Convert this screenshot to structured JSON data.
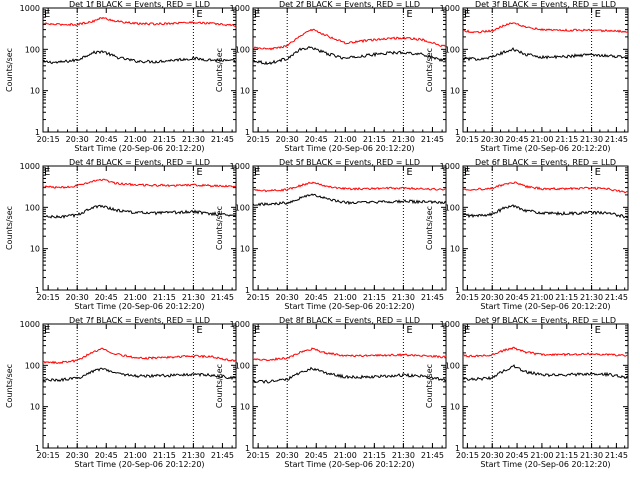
{
  "common": {
    "xlabel": "Start Time (20-Sep-06 20:12:20)",
    "ylabel": "Counts/sec",
    "xticks": [
      "20:15",
      "20:30",
      "20:45",
      "21:00",
      "21:15",
      "21:30",
      "21:45"
    ],
    "yticks": [
      "1",
      "10",
      "100",
      "1000"
    ],
    "xlim": [
      "20:12:20",
      "21:52:00"
    ],
    "ylim": [
      1,
      1000
    ],
    "yscale": "log",
    "vertical_markers": [
      "20:30",
      "21:30"
    ],
    "marker_label": "E",
    "series_colors": {
      "events": "#000000",
      "lld": "#ff0000"
    }
  },
  "chart_data": [
    {
      "type": "line",
      "title": "Det 1f BLACK = Events, RED = LLD",
      "x": [
        "20:12",
        "20:20",
        "20:30",
        "20:37",
        "20:43",
        "20:50",
        "21:00",
        "21:10",
        "21:20",
        "21:30",
        "21:40",
        "21:50"
      ],
      "series": [
        {
          "values": [
            50,
            48,
            55,
            80,
            90,
            65,
            52,
            50,
            55,
            60,
            55,
            52
          ]
        },
        {
          "values": [
            420,
            400,
            400,
            460,
            580,
            480,
            420,
            410,
            430,
            450,
            420,
            380
          ]
        }
      ]
    },
    {
      "type": "line",
      "title": "Det 2f BLACK = Events, RED = LLD",
      "x": [
        "20:12",
        "20:20",
        "20:30",
        "20:37",
        "20:43",
        "20:50",
        "21:00",
        "21:10",
        "21:20",
        "21:30",
        "21:40",
        "21:50"
      ],
      "series": [
        {
          "values": [
            55,
            45,
            60,
            100,
            110,
            80,
            60,
            70,
            80,
            85,
            75,
            55
          ]
        },
        {
          "values": [
            110,
            100,
            120,
            220,
            300,
            220,
            140,
            160,
            180,
            190,
            170,
            120
          ]
        }
      ]
    },
    {
      "type": "line",
      "title": "Det 3f BLACK = Events, RED = LLD",
      "x": [
        "20:12",
        "20:20",
        "20:30",
        "20:37",
        "20:43",
        "20:50",
        "21:00",
        "21:10",
        "21:20",
        "21:30",
        "21:40",
        "21:50"
      ],
      "series": [
        {
          "values": [
            60,
            58,
            65,
            85,
            100,
            75,
            65,
            65,
            70,
            75,
            70,
            65
          ]
        },
        {
          "values": [
            280,
            260,
            280,
            380,
            450,
            350,
            300,
            290,
            290,
            290,
            280,
            270
          ]
        }
      ]
    },
    {
      "type": "line",
      "title": "Det 4f BLACK = Events, RED = LLD",
      "x": [
        "20:12",
        "20:20",
        "20:30",
        "20:37",
        "20:43",
        "20:50",
        "21:00",
        "21:10",
        "21:20",
        "21:30",
        "21:40",
        "21:50"
      ],
      "series": [
        {
          "values": [
            60,
            58,
            65,
            95,
            110,
            85,
            75,
            72,
            75,
            78,
            70,
            65
          ]
        },
        {
          "values": [
            320,
            300,
            330,
            420,
            470,
            380,
            350,
            340,
            340,
            350,
            330,
            320
          ]
        }
      ]
    },
    {
      "type": "line",
      "title": "Det 5f BLACK = Events, RED = LLD",
      "x": [
        "20:12",
        "20:20",
        "20:30",
        "20:37",
        "20:43",
        "20:50",
        "21:00",
        "21:10",
        "21:20",
        "21:30",
        "21:40",
        "21:50"
      ],
      "series": [
        {
          "values": [
            120,
            118,
            130,
            170,
            210,
            160,
            130,
            130,
            135,
            140,
            135,
            130
          ]
        },
        {
          "values": [
            260,
            250,
            270,
            340,
            400,
            330,
            280,
            280,
            290,
            290,
            280,
            270
          ]
        }
      ]
    },
    {
      "type": "line",
      "title": "Det 6f BLACK = Events, RED = LLD",
      "x": [
        "20:12",
        "20:20",
        "20:30",
        "20:37",
        "20:43",
        "20:50",
        "21:00",
        "21:10",
        "21:20",
        "21:30",
        "21:40",
        "21:50"
      ],
      "series": [
        {
          "values": [
            65,
            62,
            68,
            95,
            110,
            85,
            72,
            70,
            72,
            75,
            72,
            60
          ]
        },
        {
          "values": [
            280,
            270,
            290,
            360,
            400,
            320,
            280,
            280,
            285,
            290,
            280,
            230
          ]
        }
      ]
    },
    {
      "type": "line",
      "title": "Det 7f BLACK = Events, RED = LLD",
      "x": [
        "20:12",
        "20:20",
        "20:30",
        "20:37",
        "20:43",
        "20:50",
        "21:00",
        "21:10",
        "21:20",
        "21:30",
        "21:40",
        "21:50"
      ],
      "series": [
        {
          "values": [
            45,
            44,
            48,
            70,
            85,
            65,
            55,
            55,
            58,
            60,
            58,
            50
          ]
        },
        {
          "values": [
            120,
            115,
            130,
            200,
            250,
            190,
            150,
            150,
            160,
            170,
            160,
            130
          ]
        }
      ]
    },
    {
      "type": "line",
      "title": "Det 8f BLACK = Events, RED = LLD",
      "x": [
        "20:12",
        "20:20",
        "20:30",
        "20:37",
        "20:43",
        "20:50",
        "21:00",
        "21:10",
        "21:20",
        "21:30",
        "21:40",
        "21:50"
      ],
      "series": [
        {
          "values": [
            42,
            40,
            45,
            68,
            85,
            65,
            52,
            52,
            55,
            58,
            55,
            45
          ]
        },
        {
          "values": [
            140,
            135,
            150,
            210,
            250,
            200,
            170,
            170,
            175,
            180,
            170,
            160
          ]
        }
      ]
    },
    {
      "type": "line",
      "title": "Det 9f BLACK = Events, RED = LLD",
      "x": [
        "20:12",
        "20:20",
        "20:30",
        "20:37",
        "20:43",
        "20:50",
        "21:00",
        "21:10",
        "21:20",
        "21:30",
        "21:40",
        "21:50"
      ],
      "series": [
        {
          "values": [
            48,
            46,
            50,
            75,
            95,
            70,
            58,
            58,
            60,
            62,
            60,
            52
          ]
        },
        {
          "values": [
            170,
            165,
            180,
            230,
            260,
            210,
            180,
            180,
            185,
            190,
            180,
            175
          ]
        }
      ]
    }
  ]
}
